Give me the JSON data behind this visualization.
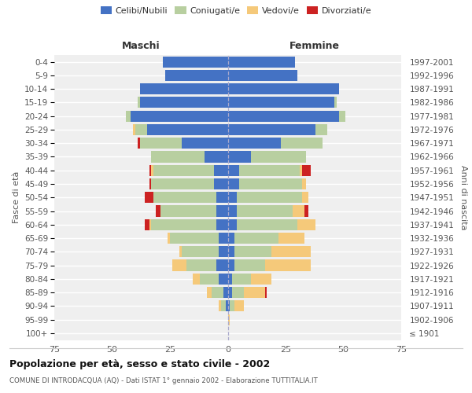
{
  "age_groups": [
    "100+",
    "95-99",
    "90-94",
    "85-89",
    "80-84",
    "75-79",
    "70-74",
    "65-69",
    "60-64",
    "55-59",
    "50-54",
    "45-49",
    "40-44",
    "35-39",
    "30-34",
    "25-29",
    "20-24",
    "15-19",
    "10-14",
    "5-9",
    "0-4"
  ],
  "birth_years": [
    "≤ 1901",
    "1902-1906",
    "1907-1911",
    "1912-1916",
    "1917-1921",
    "1922-1926",
    "1927-1931",
    "1932-1936",
    "1937-1941",
    "1942-1946",
    "1947-1951",
    "1952-1956",
    "1957-1961",
    "1962-1966",
    "1967-1971",
    "1972-1976",
    "1977-1981",
    "1982-1986",
    "1987-1991",
    "1992-1996",
    "1997-2001"
  ],
  "maschi": {
    "celibi": [
      0,
      0,
      1,
      2,
      4,
      5,
      4,
      4,
      5,
      5,
      5,
      6,
      6,
      10,
      20,
      35,
      42,
      38,
      38,
      27,
      28
    ],
    "coniugati": [
      0,
      0,
      2,
      5,
      8,
      13,
      16,
      21,
      28,
      24,
      27,
      27,
      26,
      23,
      18,
      5,
      2,
      1,
      0,
      0,
      0
    ],
    "vedovi": [
      0,
      0,
      1,
      2,
      3,
      6,
      1,
      1,
      1,
      0,
      0,
      0,
      1,
      0,
      0,
      1,
      0,
      0,
      0,
      0,
      0
    ],
    "divorziati": [
      0,
      0,
      0,
      0,
      0,
      0,
      0,
      0,
      2,
      2,
      4,
      1,
      1,
      0,
      1,
      0,
      0,
      0,
      0,
      0,
      0
    ]
  },
  "femmine": {
    "nubili": [
      0,
      0,
      1,
      2,
      2,
      3,
      3,
      3,
      4,
      4,
      4,
      5,
      5,
      10,
      23,
      38,
      48,
      46,
      48,
      30,
      29
    ],
    "coniugate": [
      0,
      0,
      2,
      5,
      8,
      13,
      16,
      19,
      26,
      24,
      28,
      27,
      26,
      24,
      18,
      5,
      3,
      1,
      0,
      0,
      0
    ],
    "vedove": [
      0,
      1,
      4,
      9,
      9,
      20,
      17,
      11,
      8,
      5,
      3,
      2,
      1,
      0,
      0,
      0,
      0,
      0,
      0,
      0,
      0
    ],
    "divorziate": [
      0,
      0,
      0,
      1,
      0,
      0,
      0,
      0,
      0,
      2,
      0,
      0,
      4,
      0,
      0,
      0,
      0,
      0,
      0,
      0,
      0
    ]
  },
  "colors": {
    "celibi": "#4472c4",
    "coniugati": "#b8cfa0",
    "vedovi": "#f5c97a",
    "divorziati": "#cc2222"
  },
  "title": "Popolazione per età, sesso e stato civile - 2002",
  "subtitle": "COMUNE DI INTRODACQUA (AQ) - Dati ISTAT 1° gennaio 2002 - Elaborazione TUTTITALIA.IT",
  "label_maschi": "Maschi",
  "label_femmine": "Femmine",
  "ylabel_left": "Fasce di età",
  "ylabel_right": "Anni di nascita",
  "xlim": 75,
  "background_color": "#efefef",
  "legend_labels": [
    "Celibi/Nubili",
    "Coniugati/e",
    "Vedovi/e",
    "Divorziati/e"
  ]
}
